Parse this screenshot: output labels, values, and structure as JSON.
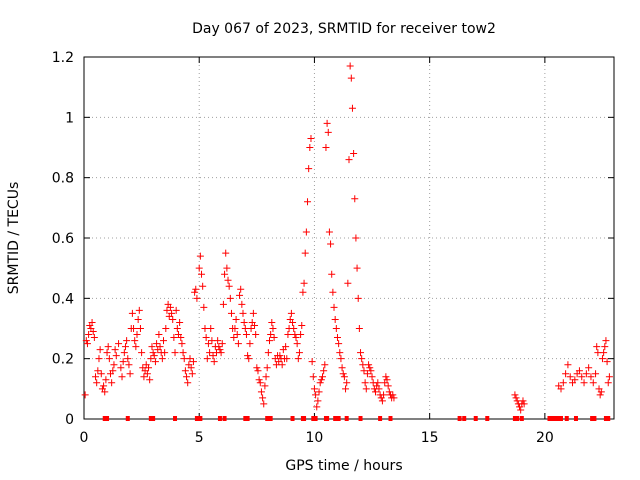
{
  "chart_data": {
    "type": "scatter",
    "title": "Day 067 of 2023, SRMTID for receiver tow2",
    "xlabel": "GPS time / hours",
    "ylabel": "SRMTID / TECUs",
    "xlim": [
      0,
      23
    ],
    "ylim": [
      0,
      1.2
    ],
    "grid": true,
    "x_ticks": [
      0,
      5,
      10,
      15,
      20
    ],
    "x_tick_labels": [
      "0",
      "5",
      "10",
      "15",
      "20"
    ],
    "y_ticks": [
      0,
      0.2,
      0.4,
      0.6,
      0.8,
      1.0,
      1.2
    ],
    "y_tick_labels": [
      "0",
      "0.2",
      "0.4",
      "0.6",
      "0.8",
      "1",
      "1.2"
    ],
    "marker": "+",
    "color": "#ff0000",
    "series": [
      {
        "name": "SRMTID",
        "points": [
          [
            0.05,
            0.08
          ],
          [
            0.1,
            0.26
          ],
          [
            0.15,
            0.25
          ],
          [
            0.2,
            0.28
          ],
          [
            0.25,
            0.31
          ],
          [
            0.3,
            0.3
          ],
          [
            0.35,
            0.32
          ],
          [
            0.4,
            0.29
          ],
          [
            0.45,
            0.27
          ],
          [
            0.5,
            0.14
          ],
          [
            0.55,
            0.12
          ],
          [
            0.6,
            0.16
          ],
          [
            0.65,
            0.2
          ],
          [
            0.7,
            0.23
          ],
          [
            0.75,
            0.15
          ],
          [
            0.8,
            0.1
          ],
          [
            0.85,
            0.11
          ],
          [
            0.9,
            0.09
          ],
          [
            0.95,
            0.13
          ],
          [
            1.0,
            0.22
          ],
          [
            1.05,
            0.24
          ],
          [
            1.1,
            0.2
          ],
          [
            1.15,
            0.15
          ],
          [
            1.2,
            0.12
          ],
          [
            1.25,
            0.16
          ],
          [
            1.3,
            0.18
          ],
          [
            1.35,
            0.23
          ],
          [
            1.4,
            0.21
          ],
          [
            1.5,
            0.25
          ],
          [
            1.6,
            0.17
          ],
          [
            1.65,
            0.14
          ],
          [
            1.7,
            0.19
          ],
          [
            1.75,
            0.22
          ],
          [
            1.8,
            0.24
          ],
          [
            1.85,
            0.26
          ],
          [
            1.9,
            0.2
          ],
          [
            1.95,
            0.18
          ],
          [
            2.0,
            0.15
          ],
          [
            2.05,
            0.3
          ],
          [
            2.1,
            0.35
          ],
          [
            2.15,
            0.3
          ],
          [
            2.2,
            0.26
          ],
          [
            2.25,
            0.24
          ],
          [
            2.3,
            0.28
          ],
          [
            2.35,
            0.33
          ],
          [
            2.4,
            0.36
          ],
          [
            2.45,
            0.3
          ],
          [
            2.5,
            0.22
          ],
          [
            2.55,
            0.17
          ],
          [
            2.6,
            0.14
          ],
          [
            2.65,
            0.16
          ],
          [
            2.7,
            0.18
          ],
          [
            2.75,
            0.15
          ],
          [
            2.8,
            0.17
          ],
          [
            2.85,
            0.13
          ],
          [
            2.9,
            0.2
          ],
          [
            2.95,
            0.24
          ],
          [
            3.0,
            0.22
          ],
          [
            3.05,
            0.21
          ],
          [
            3.1,
            0.19
          ],
          [
            3.15,
            0.25
          ],
          [
            3.2,
            0.23
          ],
          [
            3.25,
            0.28
          ],
          [
            3.3,
            0.24
          ],
          [
            3.35,
            0.22
          ],
          [
            3.4,
            0.2
          ],
          [
            3.45,
            0.26
          ],
          [
            3.5,
            0.22
          ],
          [
            3.55,
            0.3
          ],
          [
            3.6,
            0.36
          ],
          [
            3.65,
            0.38
          ],
          [
            3.7,
            0.34
          ],
          [
            3.75,
            0.37
          ],
          [
            3.8,
            0.35
          ],
          [
            3.85,
            0.33
          ],
          [
            3.9,
            0.27
          ],
          [
            3.95,
            0.22
          ],
          [
            4.0,
            0.36
          ],
          [
            4.05,
            0.3
          ],
          [
            4.1,
            0.28
          ],
          [
            4.15,
            0.32
          ],
          [
            4.2,
            0.27
          ],
          [
            4.25,
            0.25
          ],
          [
            4.3,
            0.22
          ],
          [
            4.35,
            0.2
          ],
          [
            4.4,
            0.16
          ],
          [
            4.45,
            0.14
          ],
          [
            4.5,
            0.12
          ],
          [
            4.55,
            0.18
          ],
          [
            4.6,
            0.2
          ],
          [
            4.65,
            0.17
          ],
          [
            4.7,
            0.15
          ],
          [
            4.75,
            0.19
          ],
          [
            4.8,
            0.42
          ],
          [
            4.85,
            0.43
          ],
          [
            4.9,
            0.4
          ],
          [
            5.0,
            0.5
          ],
          [
            5.05,
            0.54
          ],
          [
            5.1,
            0.48
          ],
          [
            5.15,
            0.44
          ],
          [
            5.2,
            0.37
          ],
          [
            5.25,
            0.3
          ],
          [
            5.3,
            0.27
          ],
          [
            5.35,
            0.2
          ],
          [
            5.4,
            0.25
          ],
          [
            5.45,
            0.22
          ],
          [
            5.5,
            0.3
          ],
          [
            5.55,
            0.26
          ],
          [
            5.6,
            0.21
          ],
          [
            5.65,
            0.19
          ],
          [
            5.7,
            0.24
          ],
          [
            5.75,
            0.22
          ],
          [
            5.8,
            0.26
          ],
          [
            5.85,
            0.24
          ],
          [
            5.9,
            0.23
          ],
          [
            5.95,
            0.22
          ],
          [
            6.0,
            0.25
          ],
          [
            6.05,
            0.38
          ],
          [
            6.1,
            0.48
          ],
          [
            6.15,
            0.55
          ],
          [
            6.2,
            0.5
          ],
          [
            6.25,
            0.46
          ],
          [
            6.3,
            0.44
          ],
          [
            6.35,
            0.4
          ],
          [
            6.4,
            0.35
          ],
          [
            6.45,
            0.3
          ],
          [
            6.5,
            0.27
          ],
          [
            6.55,
            0.3
          ],
          [
            6.6,
            0.33
          ],
          [
            6.65,
            0.28
          ],
          [
            6.7,
            0.25
          ],
          [
            6.75,
            0.41
          ],
          [
            6.8,
            0.43
          ],
          [
            6.85,
            0.38
          ],
          [
            6.9,
            0.35
          ],
          [
            6.95,
            0.32
          ],
          [
            7.0,
            0.3
          ],
          [
            7.05,
            0.28
          ],
          [
            7.1,
            0.21
          ],
          [
            7.15,
            0.2
          ],
          [
            7.2,
            0.25
          ],
          [
            7.25,
            0.3
          ],
          [
            7.3,
            0.32
          ],
          [
            7.35,
            0.35
          ],
          [
            7.4,
            0.31
          ],
          [
            7.45,
            0.28
          ],
          [
            7.5,
            0.17
          ],
          [
            7.55,
            0.16
          ],
          [
            7.6,
            0.13
          ],
          [
            7.65,
            0.12
          ],
          [
            7.7,
            0.09
          ],
          [
            7.75,
            0.07
          ],
          [
            7.8,
            0.05
          ],
          [
            7.85,
            0.11
          ],
          [
            7.9,
            0.14
          ],
          [
            7.95,
            0.17
          ],
          [
            8.0,
            0.22
          ],
          [
            8.05,
            0.26
          ],
          [
            8.1,
            0.28
          ],
          [
            8.15,
            0.32
          ],
          [
            8.2,
            0.3
          ],
          [
            8.25,
            0.27
          ],
          [
            8.3,
            0.2
          ],
          [
            8.35,
            0.18
          ],
          [
            8.4,
            0.21
          ],
          [
            8.45,
            0.19
          ],
          [
            8.5,
            0.21
          ],
          [
            8.55,
            0.2
          ],
          [
            8.6,
            0.18
          ],
          [
            8.65,
            0.23
          ],
          [
            8.7,
            0.2
          ],
          [
            8.75,
            0.24
          ],
          [
            8.8,
            0.2
          ],
          [
            8.85,
            0.28
          ],
          [
            8.9,
            0.3
          ],
          [
            8.95,
            0.33
          ],
          [
            9.0,
            0.35
          ],
          [
            9.05,
            0.32
          ],
          [
            9.1,
            0.3
          ],
          [
            9.15,
            0.28
          ],
          [
            9.2,
            0.27
          ],
          [
            9.25,
            0.25
          ],
          [
            9.3,
            0.2
          ],
          [
            9.35,
            0.22
          ],
          [
            9.4,
            0.28
          ],
          [
            9.45,
            0.31
          ],
          [
            9.5,
            0.42
          ],
          [
            9.55,
            0.45
          ],
          [
            9.6,
            0.55
          ],
          [
            9.65,
            0.62
          ],
          [
            9.7,
            0.72
          ],
          [
            9.75,
            0.83
          ],
          [
            9.8,
            0.9
          ],
          [
            9.85,
            0.93
          ],
          [
            9.9,
            0.19
          ],
          [
            9.95,
            0.14
          ],
          [
            10.0,
            0.1
          ],
          [
            10.05,
            0.08
          ],
          [
            10.1,
            0.04
          ],
          [
            10.15,
            0.06
          ],
          [
            10.2,
            0.09
          ],
          [
            10.25,
            0.12
          ],
          [
            10.3,
            0.13
          ],
          [
            10.35,
            0.14
          ],
          [
            10.4,
            0.16
          ],
          [
            10.45,
            0.18
          ],
          [
            10.5,
            0.9
          ],
          [
            10.55,
            0.98
          ],
          [
            10.6,
            0.95
          ],
          [
            10.65,
            0.62
          ],
          [
            10.7,
            0.58
          ],
          [
            10.75,
            0.48
          ],
          [
            10.8,
            0.42
          ],
          [
            10.85,
            0.37
          ],
          [
            10.9,
            0.33
          ],
          [
            10.95,
            0.3
          ],
          [
            11.0,
            0.27
          ],
          [
            11.05,
            0.25
          ],
          [
            11.1,
            0.22
          ],
          [
            11.15,
            0.2
          ],
          [
            11.2,
            0.17
          ],
          [
            11.25,
            0.15
          ],
          [
            11.3,
            0.14
          ],
          [
            11.35,
            0.1
          ],
          [
            11.4,
            0.12
          ],
          [
            11.45,
            0.45
          ],
          [
            11.5,
            0.86
          ],
          [
            11.55,
            1.17
          ],
          [
            11.6,
            1.13
          ],
          [
            11.65,
            1.03
          ],
          [
            11.7,
            0.88
          ],
          [
            11.75,
            0.73
          ],
          [
            11.8,
            0.6
          ],
          [
            11.85,
            0.5
          ],
          [
            11.9,
            0.4
          ],
          [
            11.95,
            0.3
          ],
          [
            12.0,
            0.22
          ],
          [
            12.05,
            0.2
          ],
          [
            12.1,
            0.18
          ],
          [
            12.15,
            0.16
          ],
          [
            12.2,
            0.12
          ],
          [
            12.25,
            0.1
          ],
          [
            12.3,
            0.15
          ],
          [
            12.35,
            0.18
          ],
          [
            12.4,
            0.17
          ],
          [
            12.45,
            0.16
          ],
          [
            12.5,
            0.14
          ],
          [
            12.55,
            0.12
          ],
          [
            12.6,
            0.1
          ],
          [
            12.65,
            0.09
          ],
          [
            12.7,
            0.11
          ],
          [
            12.75,
            0.12
          ],
          [
            12.8,
            0.1
          ],
          [
            12.85,
            0.08
          ],
          [
            12.9,
            0.07
          ],
          [
            12.95,
            0.06
          ],
          [
            13.0,
            0.08
          ],
          [
            13.05,
            0.12
          ],
          [
            13.1,
            0.14
          ],
          [
            13.15,
            0.13
          ],
          [
            13.2,
            0.11
          ],
          [
            13.25,
            0.09
          ],
          [
            13.3,
            0.08
          ],
          [
            13.35,
            0.07
          ],
          [
            13.4,
            0.08
          ],
          [
            13.45,
            0.07
          ],
          [
            18.7,
            0.08
          ],
          [
            18.75,
            0.07
          ],
          [
            18.8,
            0.06
          ],
          [
            18.85,
            0.05
          ],
          [
            18.9,
            0.04
          ],
          [
            18.95,
            0.03
          ],
          [
            19.0,
            0.05
          ],
          [
            19.05,
            0.06
          ],
          [
            19.1,
            0.05
          ],
          [
            20.6,
            0.11
          ],
          [
            20.7,
            0.1
          ],
          [
            20.8,
            0.12
          ],
          [
            20.9,
            0.15
          ],
          [
            21.0,
            0.18
          ],
          [
            21.1,
            0.14
          ],
          [
            21.2,
            0.12
          ],
          [
            21.3,
            0.13
          ],
          [
            21.4,
            0.15
          ],
          [
            21.5,
            0.16
          ],
          [
            21.6,
            0.14
          ],
          [
            21.7,
            0.12
          ],
          [
            21.8,
            0.15
          ],
          [
            21.9,
            0.17
          ],
          [
            22.0,
            0.14
          ],
          [
            22.1,
            0.12
          ],
          [
            22.2,
            0.15
          ],
          [
            22.25,
            0.24
          ],
          [
            22.3,
            0.22
          ],
          [
            22.35,
            0.1
          ],
          [
            22.4,
            0.08
          ],
          [
            22.45,
            0.09
          ],
          [
            22.5,
            0.2
          ],
          [
            22.55,
            0.22
          ],
          [
            22.6,
            0.24
          ],
          [
            22.65,
            0.26
          ],
          [
            22.7,
            0.19
          ],
          [
            22.75,
            0.12
          ],
          [
            22.8,
            0.14
          ]
        ]
      }
    ],
    "zero_points_x": [
      0.9,
      1.0,
      1.9,
      2.9,
      3.0,
      3.95,
      4.9,
      5.05,
      5.9,
      6.1,
      7.0,
      7.1,
      7.95,
      8.1,
      9.05,
      9.5,
      9.55,
      9.95,
      10.05,
      10.5,
      10.55,
      10.9,
      10.95,
      11.05,
      11.4,
      12.0,
      12.85,
      13.3,
      16.3,
      16.5,
      17.0,
      17.5,
      18.7,
      18.8,
      19.0,
      20.2,
      20.3,
      20.4,
      20.5,
      20.6,
      20.7,
      20.95,
      21.35,
      22.05,
      22.15,
      22.65,
      22.75
    ]
  }
}
